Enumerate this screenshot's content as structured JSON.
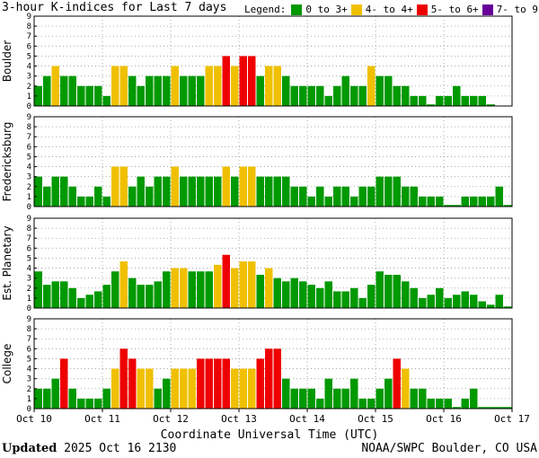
{
  "title": "3-hour K-indices for Last 7 days",
  "legend": {
    "label": "Legend:",
    "items": [
      {
        "label": "0 to 3+",
        "color": "#009900"
      },
      {
        "label": "4- to 4+",
        "color": "#f0c000"
      },
      {
        "label": "5- to 6+",
        "color": "#ee0000"
      },
      {
        "label": "7- to 9",
        "color": "#660099"
      }
    ]
  },
  "footer": {
    "updated_label": "Updated",
    "updated_value": "2025 Oct 16 2130",
    "source": "NOAA/SWPC Boulder, CO USA"
  },
  "chart_data": {
    "type": "bar",
    "xlabel": "Coordinate Universal Time (UTC)",
    "x_ticks": [
      "Oct 10",
      "Oct 11",
      "Oct 12",
      "Oct 13",
      "Oct 14",
      "Oct 15",
      "Oct 16",
      "Oct 17"
    ],
    "ylim": [
      0,
      9
    ],
    "y_ticks": [
      0,
      1,
      2,
      3,
      4,
      5,
      6,
      7,
      8,
      9
    ],
    "bins_per_day": 8,
    "grid": true,
    "panels": [
      {
        "name": "Boulder",
        "values": [
          2,
          3,
          4,
          3,
          3,
          2,
          2,
          2,
          1,
          4,
          4,
          3,
          2,
          3,
          3,
          3,
          4,
          3,
          3,
          3,
          4,
          4,
          5,
          4,
          5,
          5,
          3,
          4,
          4,
          3,
          2,
          2,
          2,
          2,
          1,
          2,
          3,
          2,
          2,
          4,
          3,
          3,
          2,
          2,
          1,
          1,
          0,
          1,
          1,
          2,
          1,
          1,
          1,
          0
        ]
      },
      {
        "name": "Fredericksburg",
        "values": [
          3,
          2,
          3,
          3,
          2,
          1,
          1,
          2,
          1,
          4,
          4,
          2,
          3,
          2,
          3,
          3,
          4,
          3,
          3,
          3,
          3,
          3,
          4,
          3,
          4,
          4,
          3,
          3,
          3,
          3,
          2,
          2,
          1,
          2,
          1,
          2,
          2,
          1,
          2,
          2,
          3,
          3,
          3,
          2,
          2,
          1,
          1,
          1,
          0,
          0,
          1,
          1,
          1,
          1,
          2,
          0
        ]
      },
      {
        "name": "Est. Planetary",
        "values": [
          3.67,
          2.33,
          2.67,
          2.67,
          2,
          1,
          1.33,
          1.67,
          2.33,
          3.67,
          4.67,
          3,
          2.33,
          2.33,
          2.67,
          3.67,
          4,
          4,
          3.67,
          3.67,
          3.67,
          4.33,
          5.33,
          4,
          4.67,
          4.67,
          3.33,
          4,
          3,
          2.67,
          3,
          2.67,
          2.33,
          2,
          2.67,
          1.67,
          1.67,
          2,
          1,
          2.33,
          3.67,
          3.33,
          3.33,
          2.67,
          2,
          1,
          1.33,
          2,
          1,
          1.33,
          1.67,
          1.33,
          0.67,
          0.33,
          1.33,
          0
        ]
      },
      {
        "name": "College",
        "values": [
          2,
          2,
          3,
          5,
          2,
          1,
          1,
          1,
          2,
          4,
          6,
          5,
          4,
          4,
          2,
          3,
          4,
          4,
          4,
          5,
          5,
          5,
          5,
          4,
          4,
          4,
          5,
          6,
          6,
          3,
          2,
          2,
          2,
          1,
          3,
          2,
          2,
          3,
          1,
          1,
          2,
          3,
          5,
          4,
          2,
          2,
          1,
          1,
          1,
          0,
          1,
          2,
          0,
          0,
          0,
          0
        ]
      }
    ]
  }
}
